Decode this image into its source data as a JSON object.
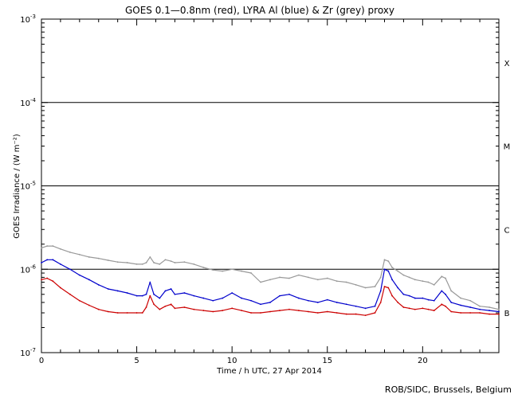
{
  "chart_data": {
    "type": "line",
    "title": "GOES 0.1—0.8nm (red), LYRA Al (blue) & Zr (grey) proxy",
    "xlabel": "Time / h UTC, 27 Apr 2014",
    "ylabel": "GOES Irradiance / (W m⁻²)",
    "xlim": [
      0,
      24
    ],
    "ylim": [
      1e-07,
      0.001
    ],
    "yscale": "log",
    "grid": false,
    "x_ticks": [
      0,
      5,
      10,
      15,
      20
    ],
    "x_tick_labels": [
      "0",
      "5",
      "10",
      "15",
      "20"
    ],
    "y_ticks": [
      {
        "base": "10",
        "exp": "-3",
        "value": 0.001
      },
      {
        "base": "10",
        "exp": "-4",
        "value": 0.0001
      },
      {
        "base": "10",
        "exp": "-5",
        "value": 1e-05
      },
      {
        "base": "10",
        "exp": "-6",
        "value": 1e-06
      },
      {
        "base": "10",
        "exp": "-7",
        "value": 1e-07
      }
    ],
    "flare_class_lines": [
      0.0001,
      1e-05,
      1e-06
    ],
    "flare_classes": [
      {
        "label": "X",
        "value": 0.0003
      },
      {
        "label": "M",
        "value": 3e-05
      },
      {
        "label": "C",
        "value": 3e-06
      },
      {
        "label": "B",
        "value": 3e-07
      }
    ],
    "series": [
      {
        "color": "#999999",
        "x": [
          0,
          0.3,
          0.6,
          1,
          1.5,
          2,
          2.5,
          3,
          3.5,
          4,
          4.5,
          5,
          5.3,
          5.5,
          5.7,
          5.9,
          6.2,
          6.5,
          6.8,
          7,
          7.5,
          8,
          8.5,
          9,
          9.5,
          10,
          10.5,
          11,
          11.5,
          12,
          12.5,
          13,
          13.5,
          14,
          14.5,
          15,
          15.5,
          16,
          16.5,
          17,
          17.5,
          17.8,
          18,
          18.2,
          18.4,
          18.7,
          19,
          19.3,
          19.6,
          20,
          20.3,
          20.6,
          21,
          21.2,
          21.5,
          22,
          22.5,
          23,
          23.5,
          24
        ],
        "values": [
          1.8e-06,
          1.9e-06,
          1.9e-06,
          1.75e-06,
          1.6e-06,
          1.5e-06,
          1.4e-06,
          1.35e-06,
          1.28e-06,
          1.22e-06,
          1.2e-06,
          1.15e-06,
          1.15e-06,
          1.2e-06,
          1.4e-06,
          1.2e-06,
          1.15e-06,
          1.3e-06,
          1.25e-06,
          1.2e-06,
          1.22e-06,
          1.15e-06,
          1.05e-06,
          9.8e-07,
          9.5e-07,
          1e-06,
          9.5e-07,
          9e-07,
          7e-07,
          7.5e-07,
          8e-07,
          7.8e-07,
          8.5e-07,
          8e-07,
          7.5e-07,
          7.8e-07,
          7.2e-07,
          7e-07,
          6.5e-07,
          6e-07,
          6.2e-07,
          8e-07,
          1.3e-06,
          1.25e-06,
          1.05e-06,
          9.5e-07,
          8.5e-07,
          8e-07,
          7.5e-07,
          7.2e-07,
          7e-07,
          6.5e-07,
          8.2e-07,
          7.8e-07,
          5.5e-07,
          4.5e-07,
          4.2e-07,
          3.6e-07,
          3.5e-07,
          3.3e-07
        ]
      },
      {
        "color": "#0000cc",
        "x": [
          0,
          0.3,
          0.6,
          1,
          1.5,
          2,
          2.5,
          3,
          3.5,
          4,
          4.5,
          5,
          5.3,
          5.5,
          5.7,
          5.9,
          6.2,
          6.5,
          6.8,
          7,
          7.5,
          8,
          8.5,
          9,
          9.5,
          10,
          10.5,
          11,
          11.5,
          12,
          12.5,
          13,
          13.5,
          14,
          14.5,
          15,
          15.5,
          16,
          16.5,
          17,
          17.5,
          17.8,
          18,
          18.2,
          18.4,
          18.7,
          19,
          19.3,
          19.6,
          20,
          20.3,
          20.6,
          21,
          21.2,
          21.5,
          22,
          22.5,
          23,
          23.5,
          24
        ],
        "values": [
          1.2e-06,
          1.3e-06,
          1.3e-06,
          1.15e-06,
          1e-06,
          8.5e-07,
          7.5e-07,
          6.5e-07,
          5.8e-07,
          5.5e-07,
          5.2e-07,
          4.8e-07,
          4.8e-07,
          5e-07,
          7e-07,
          5e-07,
          4.5e-07,
          5.5e-07,
          5.8e-07,
          5e-07,
          5.2e-07,
          4.8e-07,
          4.5e-07,
          4.2e-07,
          4.5e-07,
          5.2e-07,
          4.5e-07,
          4.2e-07,
          3.8e-07,
          4e-07,
          4.8e-07,
          5e-07,
          4.5e-07,
          4.2e-07,
          4e-07,
          4.3e-07,
          4e-07,
          3.8e-07,
          3.6e-07,
          3.4e-07,
          3.6e-07,
          5.5e-07,
          1e-06,
          9.5e-07,
          7.5e-07,
          6e-07,
          5e-07,
          4.8e-07,
          4.5e-07,
          4.5e-07,
          4.3e-07,
          4.2e-07,
          5.5e-07,
          5e-07,
          4e-07,
          3.7e-07,
          3.5e-07,
          3.3e-07,
          3.2e-07,
          3.1e-07
        ]
      },
      {
        "color": "#cc0000",
        "x": [
          0,
          0.3,
          0.6,
          1,
          1.5,
          2,
          2.5,
          3,
          3.5,
          4,
          4.5,
          5,
          5.3,
          5.5,
          5.7,
          5.9,
          6.2,
          6.5,
          6.8,
          7,
          7.5,
          8,
          8.5,
          9,
          9.5,
          10,
          10.5,
          11,
          11.5,
          12,
          12.5,
          13,
          13.5,
          14,
          14.5,
          15,
          15.5,
          16,
          16.5,
          17,
          17.5,
          17.8,
          18,
          18.2,
          18.4,
          18.7,
          19,
          19.3,
          19.6,
          20,
          20.3,
          20.6,
          21,
          21.2,
          21.5,
          22,
          22.5,
          23,
          23.5,
          24
        ],
        "values": [
          7.5e-07,
          7.8e-07,
          7.2e-07,
          6e-07,
          5e-07,
          4.2e-07,
          3.7e-07,
          3.3e-07,
          3.1e-07,
          3e-07,
          3e-07,
          3e-07,
          3e-07,
          3.5e-07,
          4.8e-07,
          3.8e-07,
          3.3e-07,
          3.6e-07,
          3.8e-07,
          3.4e-07,
          3.5e-07,
          3.3e-07,
          3.2e-07,
          3.1e-07,
          3.2e-07,
          3.4e-07,
          3.2e-07,
          3e-07,
          3e-07,
          3.1e-07,
          3.2e-07,
          3.3e-07,
          3.2e-07,
          3.1e-07,
          3e-07,
          3.1e-07,
          3e-07,
          2.9e-07,
          2.9e-07,
          2.8e-07,
          3e-07,
          4e-07,
          6.2e-07,
          6e-07,
          4.8e-07,
          4e-07,
          3.5e-07,
          3.4e-07,
          3.3e-07,
          3.4e-07,
          3.3e-07,
          3.2e-07,
          3.8e-07,
          3.6e-07,
          3.1e-07,
          3e-07,
          3e-07,
          3e-07,
          2.9e-07,
          2.9e-07
        ]
      }
    ]
  },
  "credit": "ROB/SIDC, Brussels, Belgium"
}
